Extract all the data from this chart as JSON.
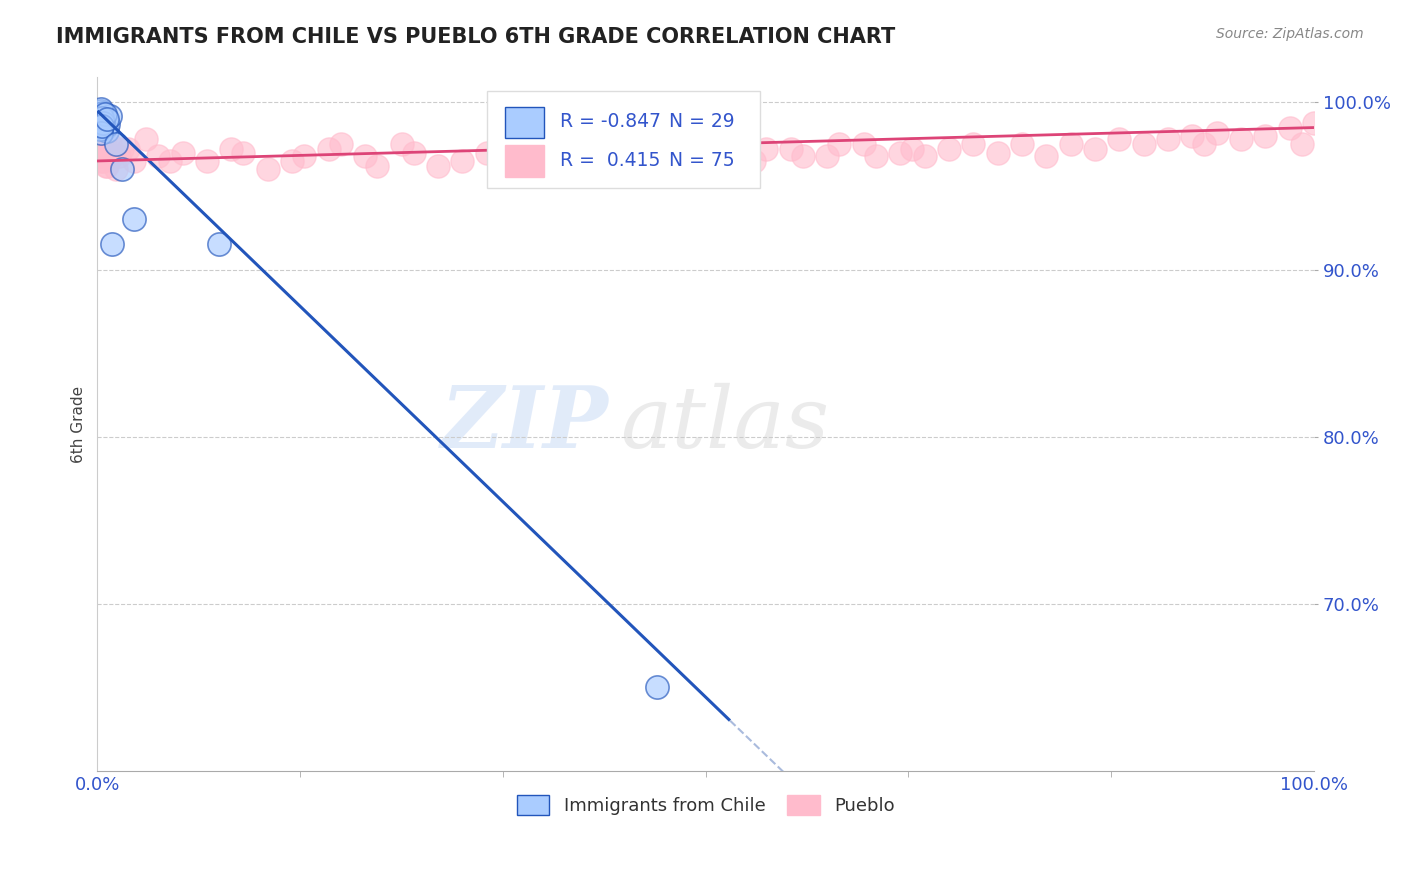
{
  "title": "IMMIGRANTS FROM CHILE VS PUEBLO 6TH GRADE CORRELATION CHART",
  "source": "Source: ZipAtlas.com",
  "ylabel": "6th Grade",
  "blue_r": -0.847,
  "blue_n": 29,
  "pink_r": 0.415,
  "pink_n": 75,
  "blue_color": "#aaccff",
  "pink_color": "#ffbbcc",
  "blue_line_color": "#2255bb",
  "pink_line_color": "#dd4477",
  "blue_scatter_x": [
    0.2,
    0.3,
    0.4,
    0.5,
    0.6,
    0.1,
    0.2,
    0.3,
    0.4,
    0.5,
    0.6,
    0.7,
    0.8,
    0.9,
    1.0,
    0.3,
    0.2,
    0.4,
    0.5,
    0.6,
    0.3,
    0.4,
    0.8,
    1.2,
    1.5,
    2.0,
    3.0,
    10.0,
    46.0
  ],
  "blue_scatter_y": [
    99.2,
    99.5,
    98.8,
    99.0,
    98.5,
    99.3,
    98.7,
    99.1,
    98.9,
    99.4,
    98.6,
    99.0,
    98.3,
    98.7,
    99.2,
    99.6,
    98.4,
    99.1,
    98.8,
    99.3,
    98.2,
    98.6,
    99.0,
    91.5,
    97.5,
    96.0,
    93.0,
    91.5,
    65.0
  ],
  "pink_scatter_x": [
    0.1,
    0.2,
    0.3,
    0.4,
    0.5,
    0.6,
    0.8,
    1.0,
    1.2,
    1.5,
    2.0,
    3.0,
    4.0,
    5.0,
    7.0,
    9.0,
    11.0,
    14.0,
    17.0,
    20.0,
    23.0,
    26.0,
    30.0,
    34.0,
    38.0,
    42.0,
    46.0,
    50.0,
    54.0,
    57.0,
    60.0,
    63.0,
    66.0,
    68.0,
    70.0,
    72.0,
    74.0,
    76.0,
    78.0,
    80.0,
    82.0,
    84.0,
    86.0,
    88.0,
    90.0,
    91.0,
    92.0,
    94.0,
    96.0,
    98.0,
    99.0,
    100.0,
    0.3,
    0.5,
    0.7,
    1.8,
    2.5,
    6.0,
    12.0,
    16.0,
    19.0,
    22.0,
    25.0,
    28.0,
    32.0,
    36.0,
    40.0,
    44.0,
    48.0,
    52.0,
    55.0,
    58.0,
    61.0,
    64.0,
    67.0
  ],
  "pink_scatter_y": [
    97.5,
    96.8,
    98.0,
    97.2,
    96.5,
    97.8,
    96.2,
    97.5,
    96.8,
    96.0,
    97.2,
    96.5,
    97.8,
    96.8,
    97.0,
    96.5,
    97.2,
    96.0,
    96.8,
    97.5,
    96.2,
    97.0,
    96.5,
    97.2,
    96.8,
    97.5,
    96.2,
    97.0,
    96.5,
    97.2,
    96.8,
    97.5,
    97.0,
    96.8,
    97.2,
    97.5,
    97.0,
    97.5,
    96.8,
    97.5,
    97.2,
    97.8,
    97.5,
    97.8,
    98.0,
    97.5,
    98.2,
    97.8,
    98.0,
    98.5,
    97.5,
    98.8,
    96.5,
    97.0,
    96.2,
    96.8,
    97.2,
    96.5,
    97.0,
    96.5,
    97.2,
    96.8,
    97.5,
    96.2,
    97.0,
    96.8,
    97.5,
    96.2,
    97.0,
    96.5,
    97.2,
    96.8,
    97.5,
    96.8,
    97.2
  ],
  "blue_line_x0": 0.0,
  "blue_line_y0": 99.5,
  "blue_line_x1": 52.0,
  "blue_line_y1": 63.0,
  "blue_line_dash_x1": 57.0,
  "blue_line_dash_y1": 59.5,
  "pink_line_x0": 0.0,
  "pink_line_y0": 96.5,
  "pink_line_x1": 100.0,
  "pink_line_y1": 98.5,
  "xlim": [
    0,
    100
  ],
  "ylim": [
    60,
    101.5
  ],
  "yticks": [
    70,
    80,
    90,
    100
  ],
  "ytick_labels": [
    "70.0%",
    "80.0%",
    "90.0%",
    "100.0%"
  ],
  "xtick_labels": [
    "0.0%",
    "100.0%"
  ],
  "watermark_zip": "ZIP",
  "watermark_atlas": "atlas",
  "background_color": "#ffffff",
  "title_color": "#222222",
  "grid_color": "#cccccc",
  "ylabel_color": "#444444",
  "tick_color": "#3355cc",
  "legend_r_color": "#3355cc",
  "dashed_line_color": "#aabbdd"
}
